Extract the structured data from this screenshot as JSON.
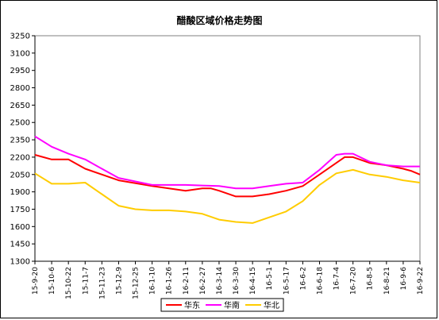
{
  "chart_data": {
    "type": "line",
    "title": "醋酸区域价格走势图",
    "xlabel": "",
    "ylabel": "",
    "ylim": [
      1300,
      3250
    ],
    "yticks": [
      1300,
      1450,
      1600,
      1750,
      1900,
      2050,
      2200,
      2350,
      2500,
      2650,
      2800,
      2950,
      3100,
      3250
    ],
    "grid": false,
    "legend_position": "bottom-center",
    "xtick_labels": [
      "15-9-20",
      "15-10-6",
      "15-10-22",
      "15-11-7",
      "15-11-23",
      "15-12-9",
      "15-12-25",
      "16-1-10",
      "16-1-26",
      "16-2-11",
      "16-2-27",
      "16-3-14",
      "16-3-30",
      "16-4-15",
      "16-5-1",
      "16-5-17",
      "16-6-2",
      "16-6-18",
      "16-7-4",
      "16-7-20",
      "16-8-5",
      "16-8-21",
      "16-9-6",
      "16-9-22"
    ],
    "series": [
      {
        "name": "华东",
        "color": "#ff0000",
        "x": [
          0,
          1,
          2,
          3,
          5,
          7,
          9,
          10,
          10.5,
          11,
          12,
          13,
          14,
          15,
          16,
          17,
          18,
          18.5,
          19,
          20,
          21,
          22,
          22.5,
          23
        ],
        "values": [
          2220,
          2180,
          2180,
          2100,
          2000,
          1950,
          1910,
          1930,
          1930,
          1910,
          1860,
          1860,
          1880,
          1910,
          1950,
          2050,
          2150,
          2200,
          2200,
          2150,
          2130,
          2100,
          2080,
          2050
        ]
      },
      {
        "name": "华南",
        "color": "#ff00ff",
        "x": [
          0,
          1,
          2,
          3,
          4,
          5,
          7,
          9,
          11,
          12,
          13,
          14,
          15,
          16,
          17,
          18,
          18.5,
          19,
          20,
          21,
          22,
          23
        ],
        "values": [
          2380,
          2290,
          2230,
          2180,
          2100,
          2020,
          1960,
          1960,
          1950,
          1930,
          1930,
          1950,
          1970,
          1980,
          2090,
          2220,
          2230,
          2230,
          2160,
          2130,
          2120,
          2120
        ]
      },
      {
        "name": "华北",
        "color": "#ffcc00",
        "x": [
          0,
          1,
          2,
          3,
          4,
          5,
          6,
          7,
          8,
          9,
          10,
          11,
          12,
          13,
          14,
          15,
          16,
          17,
          18,
          19,
          20,
          21,
          22,
          23
        ],
        "values": [
          2060,
          1970,
          1970,
          1980,
          1880,
          1780,
          1750,
          1740,
          1740,
          1730,
          1710,
          1660,
          1640,
          1630,
          1680,
          1730,
          1820,
          1960,
          2060,
          2090,
          2050,
          2030,
          2000,
          1980
        ]
      }
    ]
  }
}
